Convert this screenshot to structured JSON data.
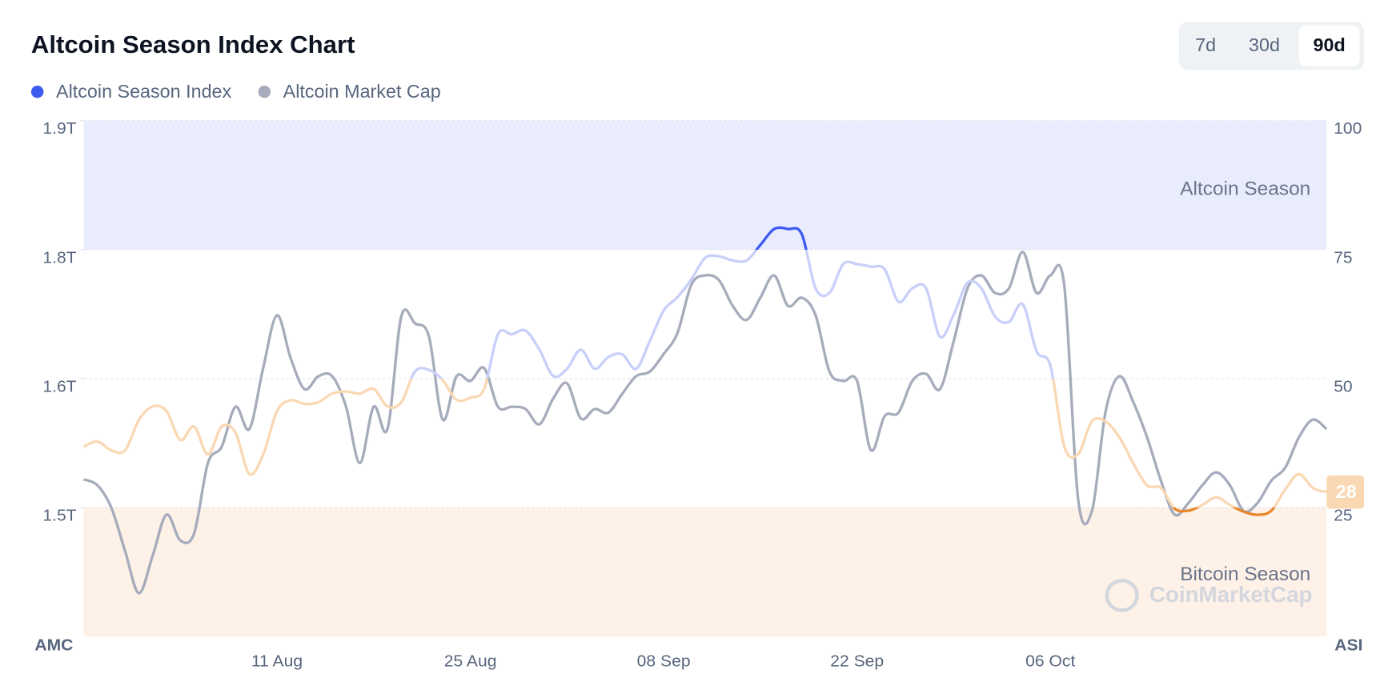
{
  "chart_data": {
    "type": "line",
    "title": "Altcoin Season Index Chart",
    "ranges": [
      "7d",
      "30d",
      "90d"
    ],
    "selected_range": 2,
    "categories": [
      null,
      null,
      null,
      null,
      null,
      null,
      null,
      null,
      null,
      null,
      null,
      null,
      null,
      null,
      "11 Aug",
      null,
      null,
      null,
      null,
      null,
      null,
      null,
      null,
      null,
      null,
      null,
      null,
      null,
      "25 Aug",
      null,
      null,
      null,
      null,
      null,
      null,
      null,
      null,
      null,
      null,
      null,
      null,
      null,
      "08 Sep",
      null,
      null,
      null,
      null,
      null,
      null,
      null,
      null,
      null,
      null,
      null,
      null,
      null,
      "22 Sep",
      null,
      null,
      null,
      null,
      null,
      null,
      null,
      null,
      null,
      null,
      null,
      null,
      null,
      "06 Oct",
      null,
      null,
      null,
      null,
      null,
      null,
      null,
      null,
      null,
      null,
      null,
      null,
      null,
      null,
      null,
      null,
      null,
      null,
      null,
      null
    ],
    "series": [
      {
        "name": "Altcoin Season Index",
        "axis": "y2",
        "color": "#3d5af1",
        "light_colors": [
          "#c8d0fa",
          "#fad8b3"
        ],
        "split": 50,
        "values": [
          36.8,
          37.8,
          36.1,
          36.1,
          42,
          44.6,
          43.7,
          38.1,
          40.7,
          35.3,
          40.7,
          39.5,
          31.5,
          35.3,
          43.7,
          45.8,
          45.1,
          45.4,
          47.1,
          47.5,
          47.1,
          48,
          44.6,
          45.4,
          51.4,
          51.7,
          49.7,
          45.9,
          46.3,
          48,
          58.6,
          58.6,
          59.3,
          55.6,
          50.5,
          51.9,
          55.6,
          51.9,
          54.2,
          54.7,
          51.9,
          57.3,
          63.2,
          65.8,
          69.2,
          73.4,
          73.7,
          72.9,
          72.9,
          75.9,
          79,
          79,
          78,
          67.5,
          66.6,
          72.2,
          72.2,
          71.7,
          71.2,
          64.9,
          67.5,
          67.5,
          58.1,
          62.4,
          68.6,
          67.5,
          62,
          61,
          64.4,
          55.3,
          52.5,
          36.9,
          35.3,
          41.7,
          41.7,
          38.6,
          33.6,
          29.3,
          28.8,
          24.8,
          24.4,
          25.5,
          27,
          25.5,
          24.2,
          23.6,
          24.4,
          28.5,
          31.5,
          28.8,
          28
        ]
      },
      {
        "name": "Altcoin Market Cap",
        "color": "#a6acbb",
        "values": [
          1.564,
          1.559,
          1.54,
          1.503,
          1.467,
          1.499,
          1.534,
          1.512,
          1.518,
          1.578,
          1.592,
          1.626,
          1.607,
          1.659,
          1.704,
          1.667,
          1.641,
          1.652,
          1.652,
          1.626,
          1.578,
          1.626,
          1.607,
          1.703,
          1.697,
          1.686,
          1.615,
          1.652,
          1.648,
          1.659,
          1.626,
          1.626,
          1.624,
          1.611,
          1.633,
          1.646,
          1.616,
          1.624,
          1.621,
          1.637,
          1.652,
          1.656,
          1.671,
          1.689,
          1.73,
          1.738,
          1.734,
          1.712,
          1.7,
          1.719,
          1.738,
          1.712,
          1.719,
          1.704,
          1.656,
          1.648,
          1.648,
          1.589,
          1.618,
          1.621,
          1.648,
          1.654,
          1.641,
          1.682,
          1.727,
          1.738,
          1.723,
          1.727,
          1.758,
          1.723,
          1.738,
          1.73,
          1.548,
          1.537,
          1.622,
          1.652,
          1.63,
          1.6,
          1.563,
          1.534,
          1.544,
          1.559,
          1.57,
          1.559,
          1.537,
          1.544,
          1.563,
          1.574,
          1.6,
          1.615,
          1.607
        ]
      }
    ],
    "y_label": "AMC",
    "ylim": [
      1.43,
      1.87
    ],
    "yticks": [
      {
        "value": 1.54,
        "label": "1.5T"
      },
      {
        "value": 1.65,
        "label": "1.6T"
      },
      {
        "value": 1.76,
        "label": "1.8T"
      },
      {
        "value": 1.87,
        "label": "1.9T"
      }
    ],
    "y2_label": "ASI",
    "y2lim": [
      0,
      100
    ],
    "y2ticks": [
      25,
      50,
      75,
      100
    ],
    "grid": true,
    "zones": [
      {
        "label": "Altcoin Season",
        "from": 75,
        "to": 100,
        "color": "#e9ecfd"
      },
      {
        "label": "Bitcoin Season",
        "from": 0,
        "to": 25,
        "color": "#fdf1e8",
        "line_color": "#e8872d"
      }
    ],
    "watermark": "CoinMarketCap"
  }
}
